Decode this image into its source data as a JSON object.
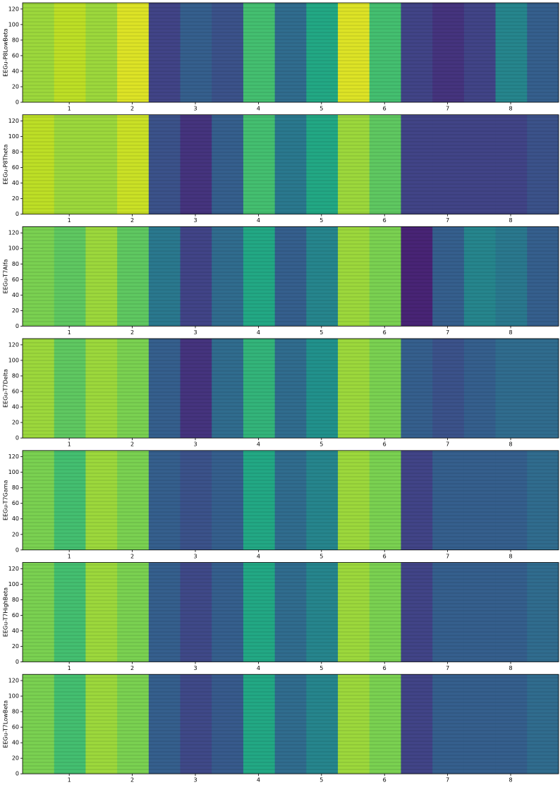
{
  "chart_data": [
    {
      "type": "heatmap",
      "ylabel": "EEGu-P8LowBeta",
      "colormap": "viridis",
      "vlim": [
        0,
        1
      ],
      "xlim": [
        0.26,
        8.76
      ],
      "xticks": [
        1,
        2,
        3,
        4,
        5,
        6,
        7,
        8
      ],
      "ylim": [
        0,
        128
      ],
      "yticks": [
        0,
        20,
        40,
        60,
        80,
        100,
        120
      ],
      "values": [
        0.85,
        0.9,
        0.85,
        0.95,
        0.2,
        0.3,
        0.25,
        0.7,
        0.35,
        0.6,
        0.95,
        0.7,
        0.2,
        0.15,
        0.2,
        0.45,
        0.3
      ]
    },
    {
      "type": "heatmap",
      "ylabel": "EEGu-P8Theta",
      "colormap": "viridis",
      "vlim": [
        0,
        1
      ],
      "xlim": [
        0.26,
        8.76
      ],
      "xticks": [
        1,
        2,
        3,
        4,
        5,
        6,
        7,
        8
      ],
      "ylim": [
        0,
        128
      ],
      "yticks": [
        0,
        20,
        40,
        60,
        80,
        100,
        120
      ],
      "values": [
        0.9,
        0.85,
        0.85,
        0.92,
        0.25,
        0.15,
        0.3,
        0.7,
        0.4,
        0.6,
        0.85,
        0.75,
        0.2,
        0.2,
        0.2,
        0.2,
        0.25
      ]
    },
    {
      "type": "heatmap",
      "ylabel": "EEGu-T7Alfa",
      "colormap": "viridis",
      "vlim": [
        0,
        1
      ],
      "xlim": [
        0.26,
        8.76
      ],
      "xticks": [
        1,
        2,
        3,
        4,
        5,
        6,
        7,
        8
      ],
      "ylim": [
        0,
        128
      ],
      "yticks": [
        0,
        20,
        40,
        60,
        80,
        100,
        120
      ],
      "values": [
        0.8,
        0.75,
        0.85,
        0.75,
        0.4,
        0.2,
        0.35,
        0.6,
        0.3,
        0.45,
        0.85,
        0.8,
        0.1,
        0.3,
        0.45,
        0.4,
        0.3
      ]
    },
    {
      "type": "heatmap",
      "ylabel": "EEGu-T7Delta",
      "colormap": "viridis",
      "vlim": [
        0,
        1
      ],
      "xlim": [
        0.26,
        8.76
      ],
      "xticks": [
        1,
        2,
        3,
        4,
        5,
        6,
        7,
        8
      ],
      "ylim": [
        0,
        128
      ],
      "yticks": [
        0,
        20,
        40,
        60,
        80,
        100,
        120
      ],
      "values": [
        0.85,
        0.75,
        0.85,
        0.8,
        0.3,
        0.15,
        0.35,
        0.65,
        0.35,
        0.5,
        0.85,
        0.8,
        0.3,
        0.25,
        0.3,
        0.35,
        0.35
      ]
    },
    {
      "type": "heatmap",
      "ylabel": "EEGu-T7Gama",
      "colormap": "viridis",
      "vlim": [
        0,
        1
      ],
      "xlim": [
        0.26,
        8.76
      ],
      "xticks": [
        1,
        2,
        3,
        4,
        5,
        6,
        7,
        8
      ],
      "ylim": [
        0,
        128
      ],
      "yticks": [
        0,
        20,
        40,
        60,
        80,
        100,
        120
      ],
      "values": [
        0.8,
        0.7,
        0.85,
        0.8,
        0.3,
        0.25,
        0.3,
        0.6,
        0.35,
        0.45,
        0.85,
        0.8,
        0.2,
        0.3,
        0.3,
        0.3,
        0.35
      ]
    },
    {
      "type": "heatmap",
      "ylabel": "EEGu-T7HighBeta",
      "colormap": "viridis",
      "vlim": [
        0,
        1
      ],
      "xlim": [
        0.26,
        8.76
      ],
      "xticks": [
        1,
        2,
        3,
        4,
        5,
        6,
        7,
        8
      ],
      "ylim": [
        0,
        128
      ],
      "yticks": [
        0,
        20,
        40,
        60,
        80,
        100,
        120
      ],
      "values": [
        0.8,
        0.7,
        0.85,
        0.8,
        0.3,
        0.22,
        0.3,
        0.6,
        0.35,
        0.45,
        0.85,
        0.8,
        0.2,
        0.3,
        0.3,
        0.3,
        0.35
      ]
    },
    {
      "type": "heatmap",
      "ylabel": "EEGu-T7LowBeta",
      "colormap": "viridis",
      "vlim": [
        0,
        1
      ],
      "xlim": [
        0.26,
        8.76
      ],
      "xticks": [
        1,
        2,
        3,
        4,
        5,
        6,
        7,
        8
      ],
      "ylim": [
        0,
        128
      ],
      "yticks": [
        0,
        20,
        40,
        60,
        80,
        100,
        120
      ],
      "values": [
        0.8,
        0.7,
        0.85,
        0.8,
        0.3,
        0.22,
        0.28,
        0.6,
        0.35,
        0.45,
        0.85,
        0.8,
        0.2,
        0.3,
        0.3,
        0.3,
        0.35
      ]
    }
  ]
}
